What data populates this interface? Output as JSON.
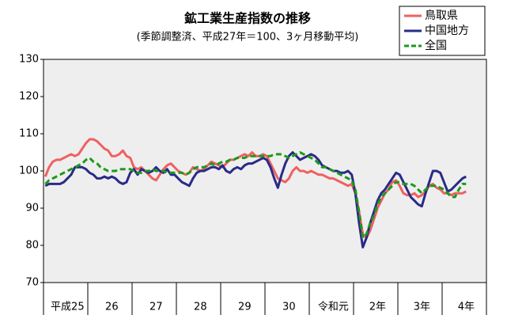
{
  "chart_data": {
    "type": "line",
    "title": "鉱工業生産指数の推移",
    "subtitle": "(季節調整済、平成27年＝100、3ヶ月移動平均)",
    "categories": [
      null,
      null,
      null,
      null,
      null,
      null,
      "平成25",
      null,
      null,
      null,
      null,
      null,
      null,
      null,
      null,
      null,
      null,
      null,
      "26",
      null,
      null,
      null,
      null,
      null,
      null,
      null,
      null,
      null,
      null,
      null,
      "27",
      null,
      null,
      null,
      null,
      null,
      null,
      null,
      null,
      null,
      null,
      null,
      "28",
      null,
      null,
      null,
      null,
      null,
      null,
      null,
      null,
      null,
      null,
      null,
      "29",
      null,
      null,
      null,
      null,
      null,
      null,
      null,
      null,
      null,
      null,
      null,
      "30",
      null,
      null,
      null,
      null,
      null,
      null,
      null,
      null,
      null,
      null,
      null,
      "令和元",
      null,
      null,
      null,
      null,
      null,
      null,
      null,
      null,
      null,
      null,
      null,
      "2年",
      null,
      null,
      null,
      null,
      null,
      null,
      null,
      null,
      null,
      null,
      null,
      "3年",
      null,
      null,
      null,
      null,
      null,
      null,
      null,
      null,
      null,
      null,
      null,
      "4年",
      null,
      null,
      null,
      null,
      null
    ],
    "series": [
      {
        "name": "鳥取県",
        "color": "#f06060",
        "dashed": false,
        "values": [
          98.5,
          101,
          102.5,
          103,
          103,
          103.5,
          104,
          104.5,
          104,
          104.5,
          106,
          107.5,
          108.5,
          108.5,
          108,
          107,
          106,
          105.5,
          104,
          104,
          104.5,
          105.5,
          104,
          103.5,
          101,
          100.5,
          101,
          100,
          99,
          98,
          97.5,
          99,
          100.5,
          101.5,
          102,
          101,
          100,
          99.5,
          99,
          99.5,
          101,
          100.5,
          100,
          100.5,
          101.5,
          102.5,
          102,
          101.5,
          101,
          102,
          103,
          103,
          103.5,
          104,
          104.5,
          104,
          105,
          104,
          104,
          104.5,
          104,
          102,
          100,
          98,
          97.5,
          97,
          98,
          100,
          101,
          100,
          100,
          99.5,
          100,
          99.5,
          99,
          99,
          98.5,
          98,
          98,
          97.5,
          97,
          96.5,
          96,
          96.5,
          94,
          89,
          83,
          82,
          84,
          87,
          90,
          92,
          94,
          95,
          97,
          97.5,
          96,
          94,
          93.5,
          93.5,
          94,
          93,
          93.5,
          94.5,
          96,
          96.5,
          95.5,
          95,
          94,
          94,
          93.5,
          94,
          94,
          94,
          94.5,
          null,
          null,
          null,
          null,
          null
        ]
      },
      {
        "name": "中国地方",
        "color": "#2a2a8a",
        "dashed": false,
        "values": [
          96,
          96.5,
          96.5,
          96.5,
          96.5,
          97,
          98,
          99,
          101,
          101,
          101,
          100.5,
          99.5,
          99,
          98,
          98,
          98.5,
          98,
          98.5,
          98,
          97,
          96.5,
          97,
          99.5,
          100.5,
          99,
          100.5,
          100,
          99.5,
          100,
          101,
          100,
          99.5,
          100.5,
          99,
          99,
          98,
          97,
          96.5,
          96,
          98,
          99.5,
          100,
          100,
          100.5,
          101,
          101,
          100.5,
          101.5,
          100,
          99.5,
          100.5,
          101,
          100.5,
          101.5,
          102,
          102,
          102.5,
          103,
          103.5,
          103,
          101,
          98,
          95.5,
          99,
          102,
          104,
          105,
          104,
          103,
          103.5,
          104,
          104.5,
          104,
          103,
          101.5,
          101,
          100.5,
          100,
          100,
          99.5,
          99.5,
          100,
          99,
          94,
          86,
          79.5,
          82,
          86,
          89,
          92,
          94,
          95,
          96.5,
          98,
          99.5,
          99,
          97,
          95,
          93,
          92,
          91,
          90.5,
          94,
          97,
          100,
          100,
          99.5,
          97,
          94.5,
          95,
          96,
          97,
          98,
          98.5,
          null,
          null,
          null,
          null,
          null
        ]
      },
      {
        "name": "全国",
        "color": "#1a9a1a",
        "dashed": true,
        "values": [
          96.5,
          97.5,
          98,
          98.5,
          99,
          99.5,
          100,
          100.5,
          101,
          101.5,
          102,
          103,
          103.5,
          102.5,
          102,
          101,
          100.5,
          100,
          100,
          100,
          100.5,
          100.5,
          100.5,
          100.5,
          100,
          99.5,
          99.5,
          100,
          100,
          100.5,
          100,
          100,
          100,
          99.5,
          99.5,
          99.5,
          99.5,
          99.5,
          99,
          99.5,
          100.5,
          101,
          101,
          101,
          101.5,
          102,
          101.5,
          102,
          102.5,
          102.5,
          103,
          103,
          103.5,
          103.5,
          103.5,
          104,
          104,
          104,
          104,
          104,
          104,
          104,
          104.5,
          104.5,
          104.5,
          104,
          103.5,
          104,
          104.5,
          105,
          104.5,
          104,
          103.5,
          103,
          102,
          101,
          101,
          100.5,
          100,
          99.5,
          99,
          98.5,
          98,
          97.5,
          95,
          89,
          82,
          83,
          86,
          88,
          91,
          93,
          94,
          95,
          96,
          97,
          97,
          96.5,
          96.5,
          96.5,
          96,
          95,
          94,
          95,
          96,
          96,
          96,
          95.5,
          95,
          94,
          93,
          93,
          95,
          96.5,
          96.5,
          null,
          null,
          null,
          null,
          null
        ]
      }
    ],
    "ylim": [
      70,
      130
    ],
    "yticks": [
      70,
      80,
      90,
      100,
      110,
      120,
      130
    ],
    "grid": false,
    "legend": "top-right"
  }
}
